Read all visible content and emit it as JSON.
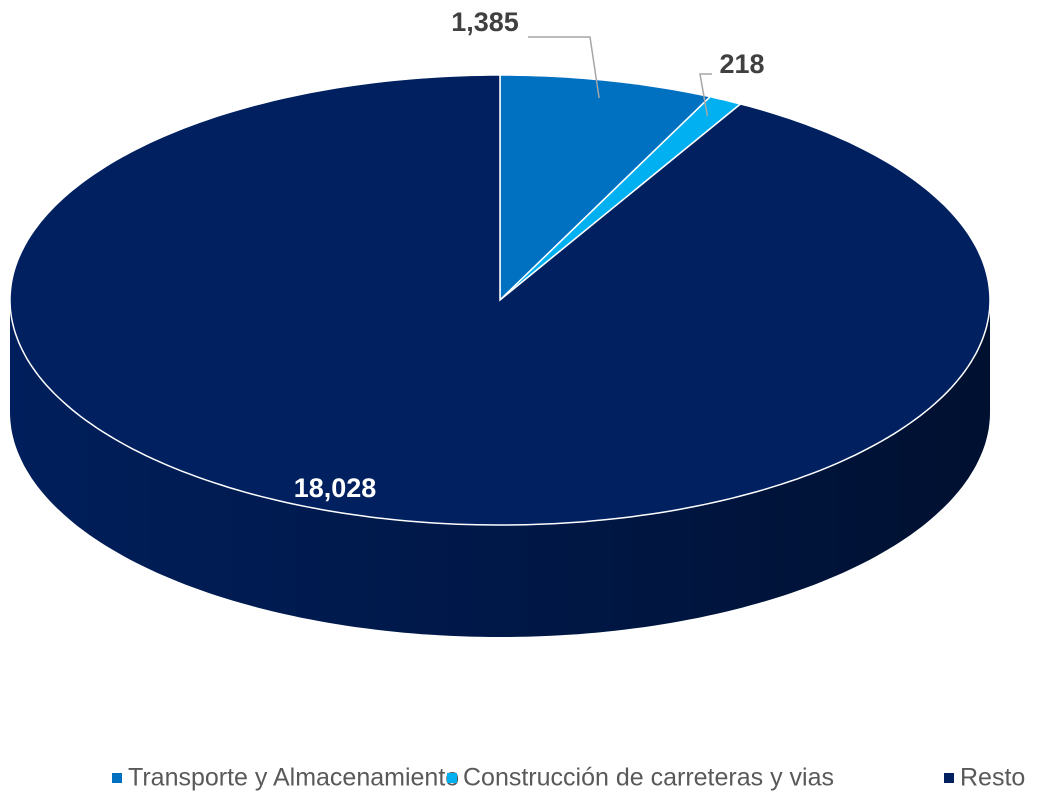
{
  "chart_data": {
    "type": "pie",
    "categories": [
      "Transporte y Almacenamiento",
      "Construcción de carreteras y vias",
      "Resto"
    ],
    "values": [
      1385,
      218,
      18028
    ],
    "value_labels": [
      "1,385",
      "218",
      "18,028"
    ],
    "colors": [
      "#0070c0",
      "#00b0f0",
      "#002060"
    ],
    "legend": "bottom"
  }
}
